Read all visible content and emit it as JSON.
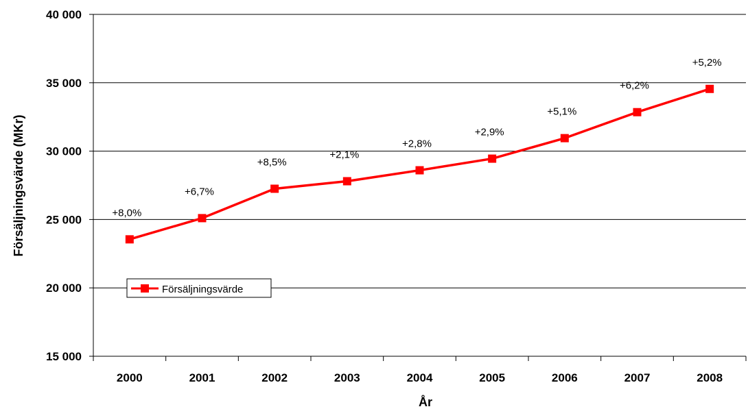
{
  "chart_data": {
    "type": "line",
    "title": "",
    "xlabel": "År",
    "ylabel": "Försäljningsvärde (MKr)",
    "categories": [
      "2000",
      "2001",
      "2002",
      "2003",
      "2004",
      "2005",
      "2006",
      "2007",
      "2008"
    ],
    "ylim": [
      15000,
      40000
    ],
    "yticks": [
      15000,
      20000,
      25000,
      30000,
      35000,
      40000
    ],
    "ytick_labels": [
      "15 000",
      "20 000",
      "25 000",
      "30 000",
      "35 000",
      "40 000"
    ],
    "grid": "horizontal",
    "legend": "inside-left",
    "series": [
      {
        "name": "Försäljningsvärde",
        "color": "#ff0000",
        "marker": "square",
        "values": [
          23550,
          25100,
          27250,
          27800,
          28600,
          29450,
          30950,
          32850,
          34550
        ],
        "data_labels": [
          "+8,0%",
          "+6,7%",
          "+8,5%",
          "+2,1%",
          "+2,8%",
          "+2,9%",
          "+5,1%",
          "+6,2%",
          "+5,2%"
        ]
      }
    ]
  }
}
